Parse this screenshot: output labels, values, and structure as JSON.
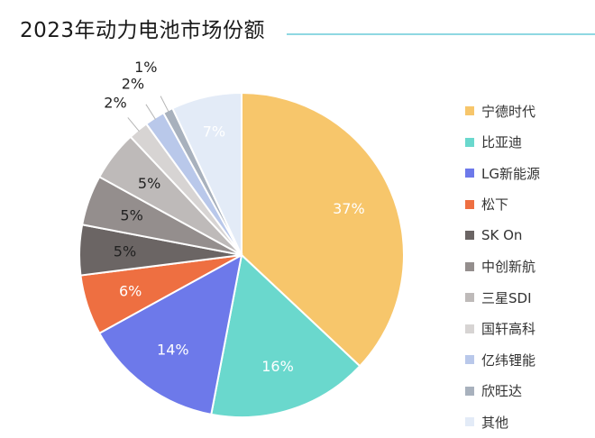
{
  "chart_data": {
    "type": "pie",
    "title": "2023年动力电池市场份额",
    "slices": [
      {
        "name": "宁德时代",
        "value": 37,
        "label": "37%",
        "color": "#f7c66b"
      },
      {
        "name": "比亚迪",
        "value": 16,
        "label": "16%",
        "color": "#6ad8cd"
      },
      {
        "name": "LG新能源",
        "value": 14,
        "label": "14%",
        "color": "#6d79ea"
      },
      {
        "name": "松下",
        "value": 6,
        "label": "6%",
        "color": "#ee6f41"
      },
      {
        "name": "SK On",
        "value": 5,
        "label": "5%",
        "color": "#6b6564"
      },
      {
        "name": "中创新航",
        "value": 5,
        "label": "5%",
        "color": "#948e8d"
      },
      {
        "name": "三星SDI",
        "value": 5,
        "label": "5%",
        "color": "#bebab9"
      },
      {
        "name": "国轩高科",
        "value": 2,
        "label": "2%",
        "color": "#d7d4d3"
      },
      {
        "name": "亿纬锂能",
        "value": 2,
        "label": "2%",
        "color": "#b9c8ea"
      },
      {
        "name": "欣旺达",
        "value": 1,
        "label": "1%",
        "color": "#a8b1bd"
      },
      {
        "name": "其他",
        "value": 7,
        "label": "7%",
        "color": "#e3ebf7"
      }
    ],
    "legend_position": "right"
  }
}
